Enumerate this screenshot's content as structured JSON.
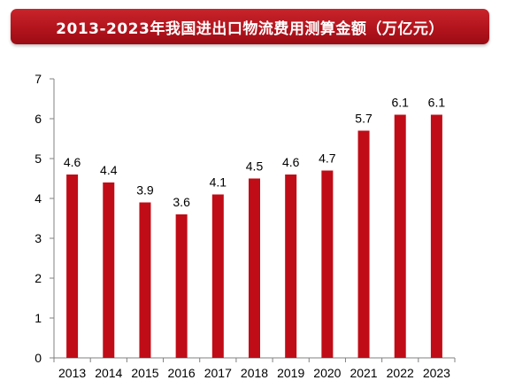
{
  "title": "2013-2023年我国进出口物流费用测算金额（万亿元）",
  "colors": {
    "bar": "#c00c17",
    "title_bg": "#b3141d",
    "axis": "#808080",
    "text": "#000000"
  },
  "chart_data": {
    "type": "bar",
    "title": "2013-2023年我国进出口物流费用测算金额（万亿元）",
    "xlabel": "",
    "ylabel": "",
    "categories": [
      "2013",
      "2014",
      "2015",
      "2016",
      "2017",
      "2018",
      "2019",
      "2020",
      "2021",
      "2022",
      "2023"
    ],
    "values": [
      4.6,
      4.4,
      3.9,
      3.6,
      4.1,
      4.5,
      4.6,
      4.7,
      5.7,
      6.1,
      6.1
    ],
    "data_labels": [
      "4.6",
      "4.4",
      "3.9",
      "3.6",
      "4.1",
      "4.5",
      "4.6",
      "4.7",
      "5.7",
      "6.1",
      "6.1"
    ],
    "ylim": [
      0,
      7
    ],
    "yticks": [
      "0",
      "1",
      "2",
      "3",
      "4",
      "5",
      "6",
      "7"
    ],
    "grid": false,
    "legend": "none"
  }
}
